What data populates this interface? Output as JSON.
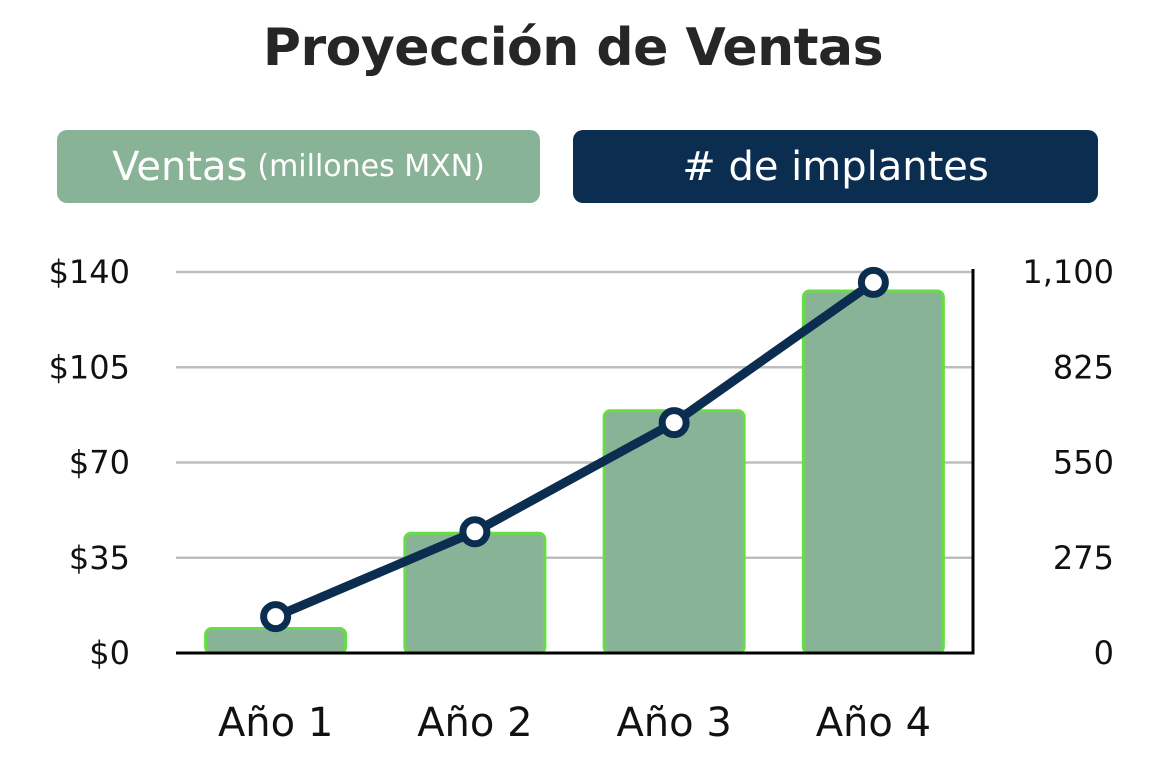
{
  "chart_data": {
    "type": "bar",
    "title": "Proyección de Ventas",
    "categories": [
      "Año 1",
      "Año 2",
      "Año 3",
      "Año 4"
    ],
    "series": [
      {
        "name": "Ventas (millones MXN)",
        "type": "bar",
        "axis": "left",
        "color": "#88b397",
        "border_color": "#66dd44",
        "values": [
          9,
          44,
          89,
          133
        ]
      },
      {
        "name": "# de implantes",
        "type": "line",
        "axis": "right",
        "color": "#0b2d50",
        "values": [
          105,
          350,
          665,
          1070
        ]
      }
    ],
    "y_left": {
      "ylim": [
        0,
        140
      ],
      "ticks": [
        0,
        35,
        70,
        105,
        140
      ],
      "tick_labels": [
        "$0",
        "$35",
        "$70",
        "$105",
        "$140"
      ]
    },
    "y_right": {
      "ylim": [
        0,
        1100
      ],
      "ticks": [
        0,
        275,
        550,
        825,
        1100
      ],
      "tick_labels": [
        "0",
        "275",
        "550",
        "825",
        "1,100"
      ]
    },
    "grid": true,
    "legend_placement": "top",
    "legend": {
      "sales_main": "Ventas",
      "sales_unit": "(millones MXN)",
      "implants": "# de implantes"
    }
  }
}
